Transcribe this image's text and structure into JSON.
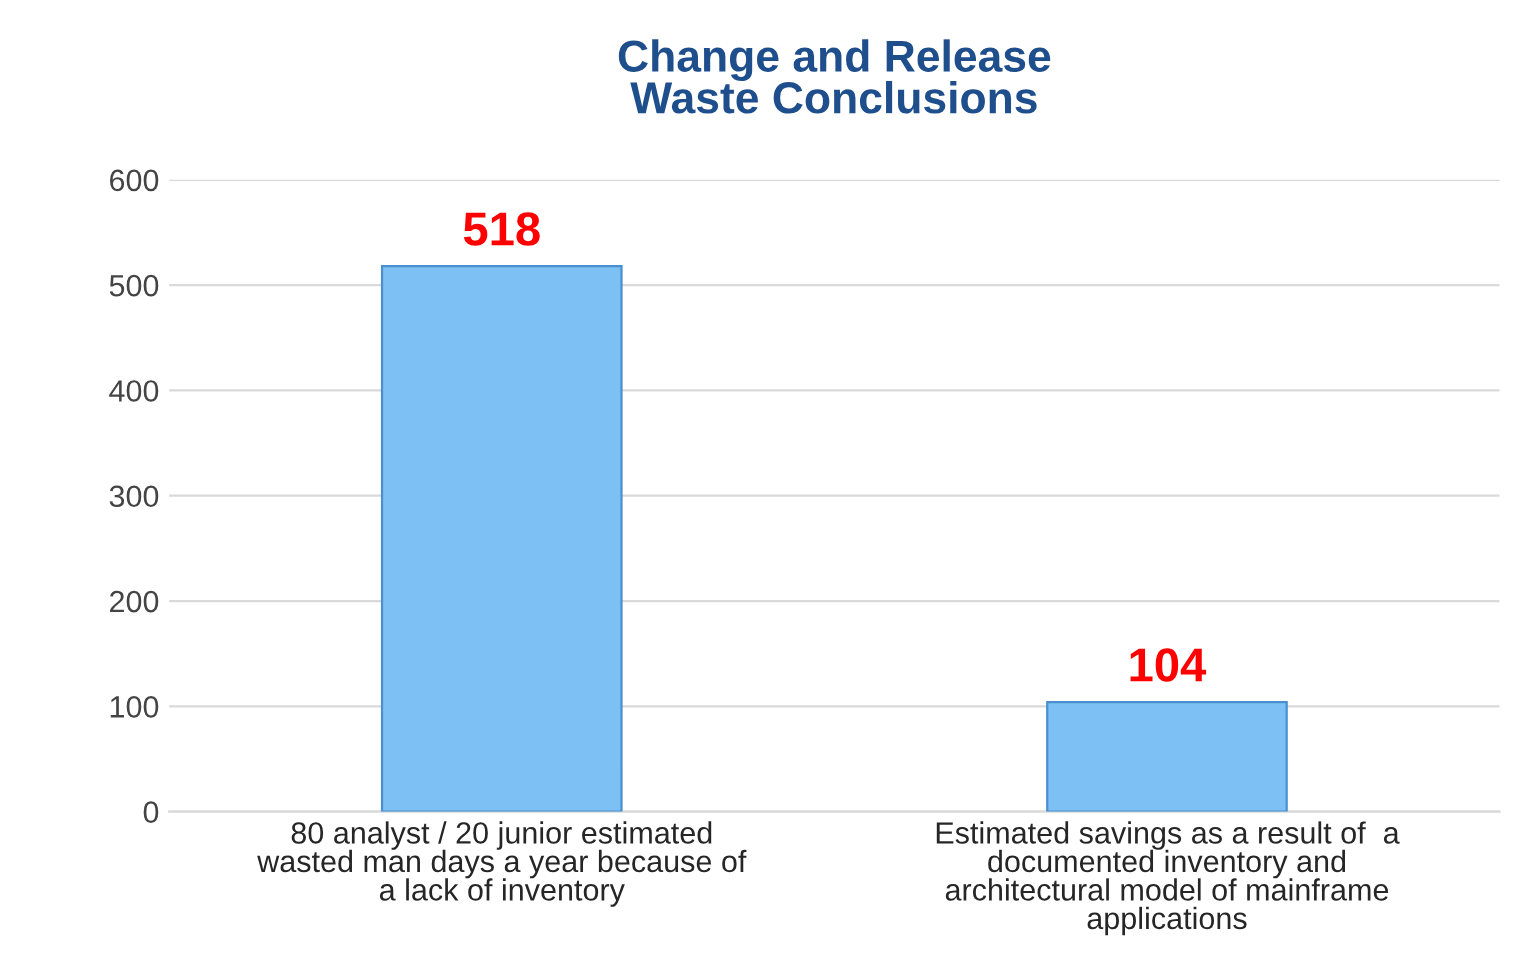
{
  "chart_data": {
    "type": "bar",
    "title": "Change and Release\nWaste Conclusions",
    "categories": [
      "80 analyst / 20 junior estimated\nwasted man days a year because of\na lack of inventory",
      "Estimated savings as a result of  a\ndocumented inventory and\narchitectural model of mainframe\napplications"
    ],
    "values": [
      518,
      104
    ],
    "color": "#7cc0f4",
    "ylim": [
      0,
      600
    ],
    "yticks": [
      0,
      100,
      200,
      300,
      400,
      500,
      600
    ],
    "grid": "y",
    "data_labels": true
  }
}
